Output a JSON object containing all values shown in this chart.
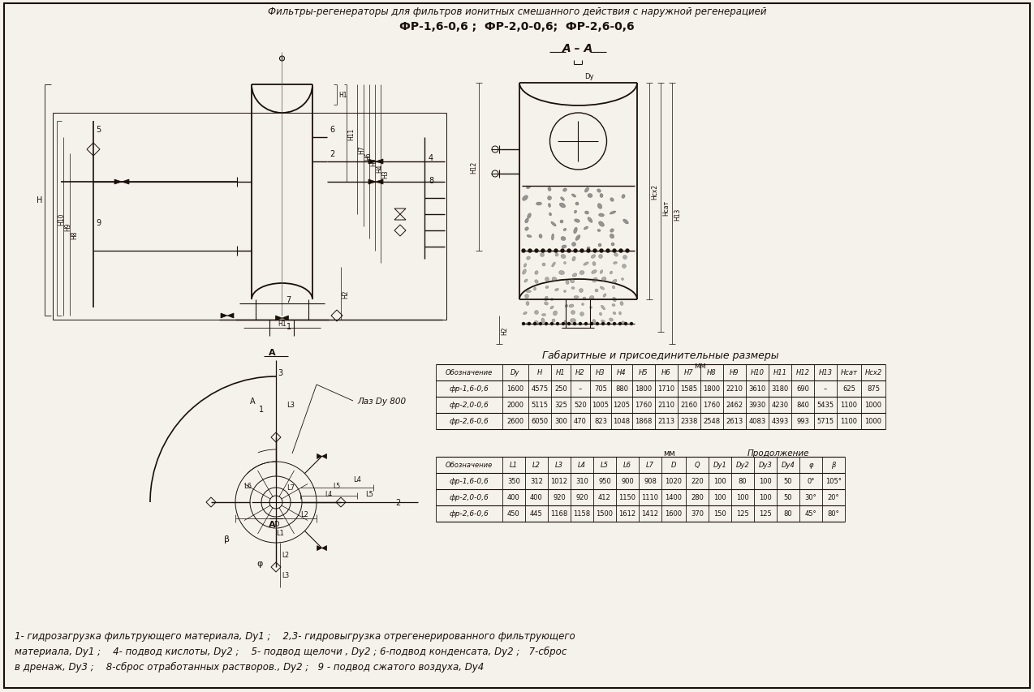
{
  "bg_color": "#f5f2eb",
  "title_line1": "Фильтры-регенераторы для фильтров ионитных смешанного действия с наружной регенерацией",
  "title_line2": "ФР-1,6-0,6 ;  ФР-2,0-0,6;  ФР-2,6-0,6",
  "section_label": "А – А",
  "table1_title": "Габаритные и присоединительные размеры",
  "table1_mm_label": "мм",
  "table1_cont_label": "Продолжение",
  "table1_headers": [
    "Обозначение",
    "Dy",
    "H",
    "H1",
    "H2",
    "H3",
    "H4",
    "H5",
    "H6",
    "H7",
    "H8",
    "H9",
    "H10",
    "H11",
    "H12",
    "H13",
    "Нсат",
    "Нсх2"
  ],
  "table1_rows": [
    [
      "фр-1,6-0,6",
      "1600",
      "4575",
      "250",
      "–",
      "705",
      "880",
      "1800",
      "1710",
      "1585",
      "1800",
      "2210",
      "3610",
      "3180",
      "690",
      "–",
      "625",
      "875"
    ],
    [
      "фр-2,0-0,6",
      "2000",
      "5115",
      "325",
      "520",
      "1005",
      "1205",
      "1760",
      "2110",
      "2160",
      "1760",
      "2462",
      "3930",
      "4230",
      "840",
      "5435",
      "1100",
      "1000"
    ],
    [
      "фр-2,6-0,6",
      "2600",
      "6050",
      "300",
      "470",
      "823",
      "1048",
      "1868",
      "2113",
      "2338",
      "2548",
      "2613",
      "4083",
      "4393",
      "993",
      "5715",
      "1100",
      "1000"
    ]
  ],
  "table2_headers": [
    "Обозначение",
    "L1",
    "L2",
    "L3",
    "L4",
    "L5",
    "L6",
    "L7",
    "D",
    "Q",
    "Dy1",
    "Dy2",
    "Dy3",
    "Dy4",
    "φ",
    "β"
  ],
  "table2_rows": [
    [
      "фр-1,6-0,6",
      "350",
      "312",
      "1012",
      "310",
      "950",
      "900",
      "908",
      "1020",
      "220",
      "100",
      "80",
      "100",
      "50",
      "0°",
      "105°"
    ],
    [
      "фр-2,0-0,6",
      "400",
      "400",
      "920",
      "920",
      "412",
      "1150",
      "1110",
      "1400",
      "280",
      "100",
      "100",
      "100",
      "50",
      "30°",
      "20°"
    ],
    [
      "фр-2,6-0,6",
      "450",
      "445",
      "1168",
      "1158",
      "1500",
      "1612",
      "1412",
      "1600",
      "370",
      "150",
      "125",
      "125",
      "80",
      "45°",
      "80°"
    ]
  ],
  "footnotes": [
    "1- гидрозагрузка фильтрующего материала, Dy1 ;    2,3- гидровыгрузка отрегенерированного фильтрующего",
    "материала, Dy1 ;    4- подвод кислоты, Dy2 ;    5- подвод щелочи , Dy2 ; 6-подвод конденсата, Dy2 ;   7-сброс",
    "в дренаж, Dy3 ;    8-сброс отработанных растворов., Dy2 ;   9 - подвод сжатого воздуха, Dy4"
  ],
  "laz_label": "Лаз Dy 800",
  "ink_color": "#1a1008"
}
